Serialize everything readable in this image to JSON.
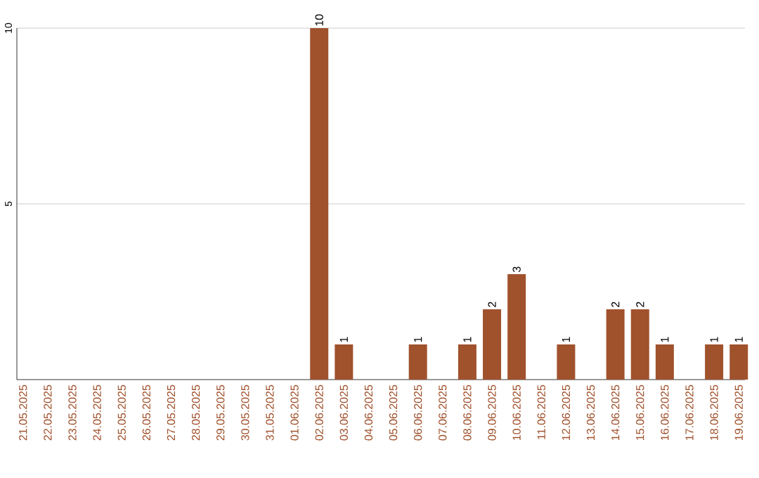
{
  "chart_data": {
    "type": "bar",
    "categories": [
      "21.05.2025",
      "22.05.2025",
      "23.05.2025",
      "24.05.2025",
      "25.05.2025",
      "26.05.2025",
      "27.05.2025",
      "28.05.2025",
      "29.05.2025",
      "30.05.2025",
      "31.05.2025",
      "01.06.2025",
      "02.06.2025",
      "03.06.2025",
      "04.06.2025",
      "05.06.2025",
      "06.06.2025",
      "07.06.2025",
      "08.06.2025",
      "09.06.2025",
      "10.06.2025",
      "11.06.2025",
      "12.06.2025",
      "13.06.2025",
      "14.06.2025",
      "15.06.2025",
      "16.06.2025",
      "17.06.2025",
      "18.06.2025",
      "19.06.2025"
    ],
    "values": [
      0,
      0,
      0,
      0,
      0,
      0,
      0,
      0,
      0,
      0,
      0,
      0,
      10,
      1,
      0,
      0,
      1,
      0,
      1,
      2,
      3,
      0,
      1,
      0,
      2,
      2,
      1,
      0,
      1,
      1
    ],
    "value_labels": [
      null,
      null,
      null,
      null,
      null,
      null,
      null,
      null,
      null,
      null,
      null,
      null,
      "10",
      "1",
      null,
      null,
      "1",
      null,
      "1",
      "2",
      "3",
      null,
      "1",
      null,
      "2",
      "2",
      "1",
      null,
      "1",
      "1"
    ],
    "color": "#a0522d",
    "ylim": [
      0,
      10
    ],
    "yticks": [
      5,
      10
    ],
    "grid": "y"
  }
}
